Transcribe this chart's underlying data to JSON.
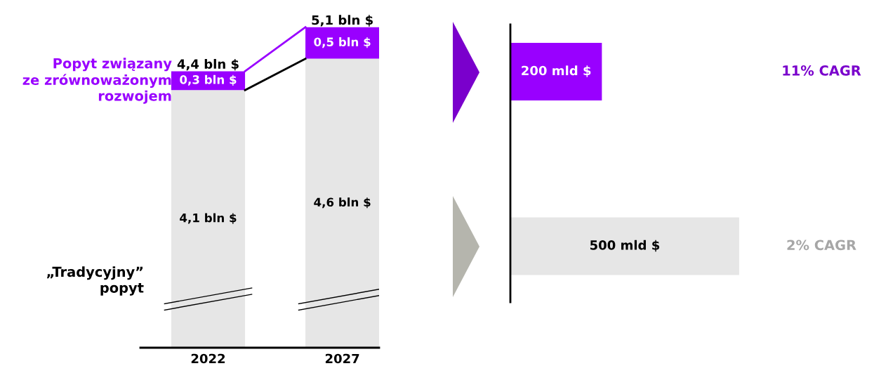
{
  "chart_data": [
    {
      "type": "bar",
      "stacked": true,
      "categories": [
        "2022",
        "2027"
      ],
      "tick_labels": "x",
      "legend": false,
      "grid": false,
      "series": [
        {
          "name": "„Tradycyjny”\npopyt",
          "color": "#e6e6e6",
          "values": [
            4.1,
            4.6
          ],
          "value_labels": [
            "4,1 bln $",
            "4,6 bln $"
          ]
        },
        {
          "name": "Popyt związany\nze zrównoważonym\nrozwojem",
          "color": "#9900ff",
          "values": [
            0.3,
            0.5
          ],
          "value_labels": [
            "0,3 bln $",
            "0,5 bln $"
          ]
        }
      ],
      "totals": [
        "4,4 bln $",
        "5,1 bln $"
      ]
    },
    {
      "type": "bar",
      "orientation": "horizontal",
      "categories": [
        null,
        null
      ],
      "values": [
        200,
        500
      ],
      "colors": [
        "#9900ff",
        "#e6e6e6"
      ],
      "tick_labels": false,
      "legend": false,
      "grid": false,
      "value_labels": [
        "200 mld $",
        "500 mld $"
      ],
      "annotations": [
        "11% CAGR",
        "2% CAGR"
      ]
    }
  ]
}
